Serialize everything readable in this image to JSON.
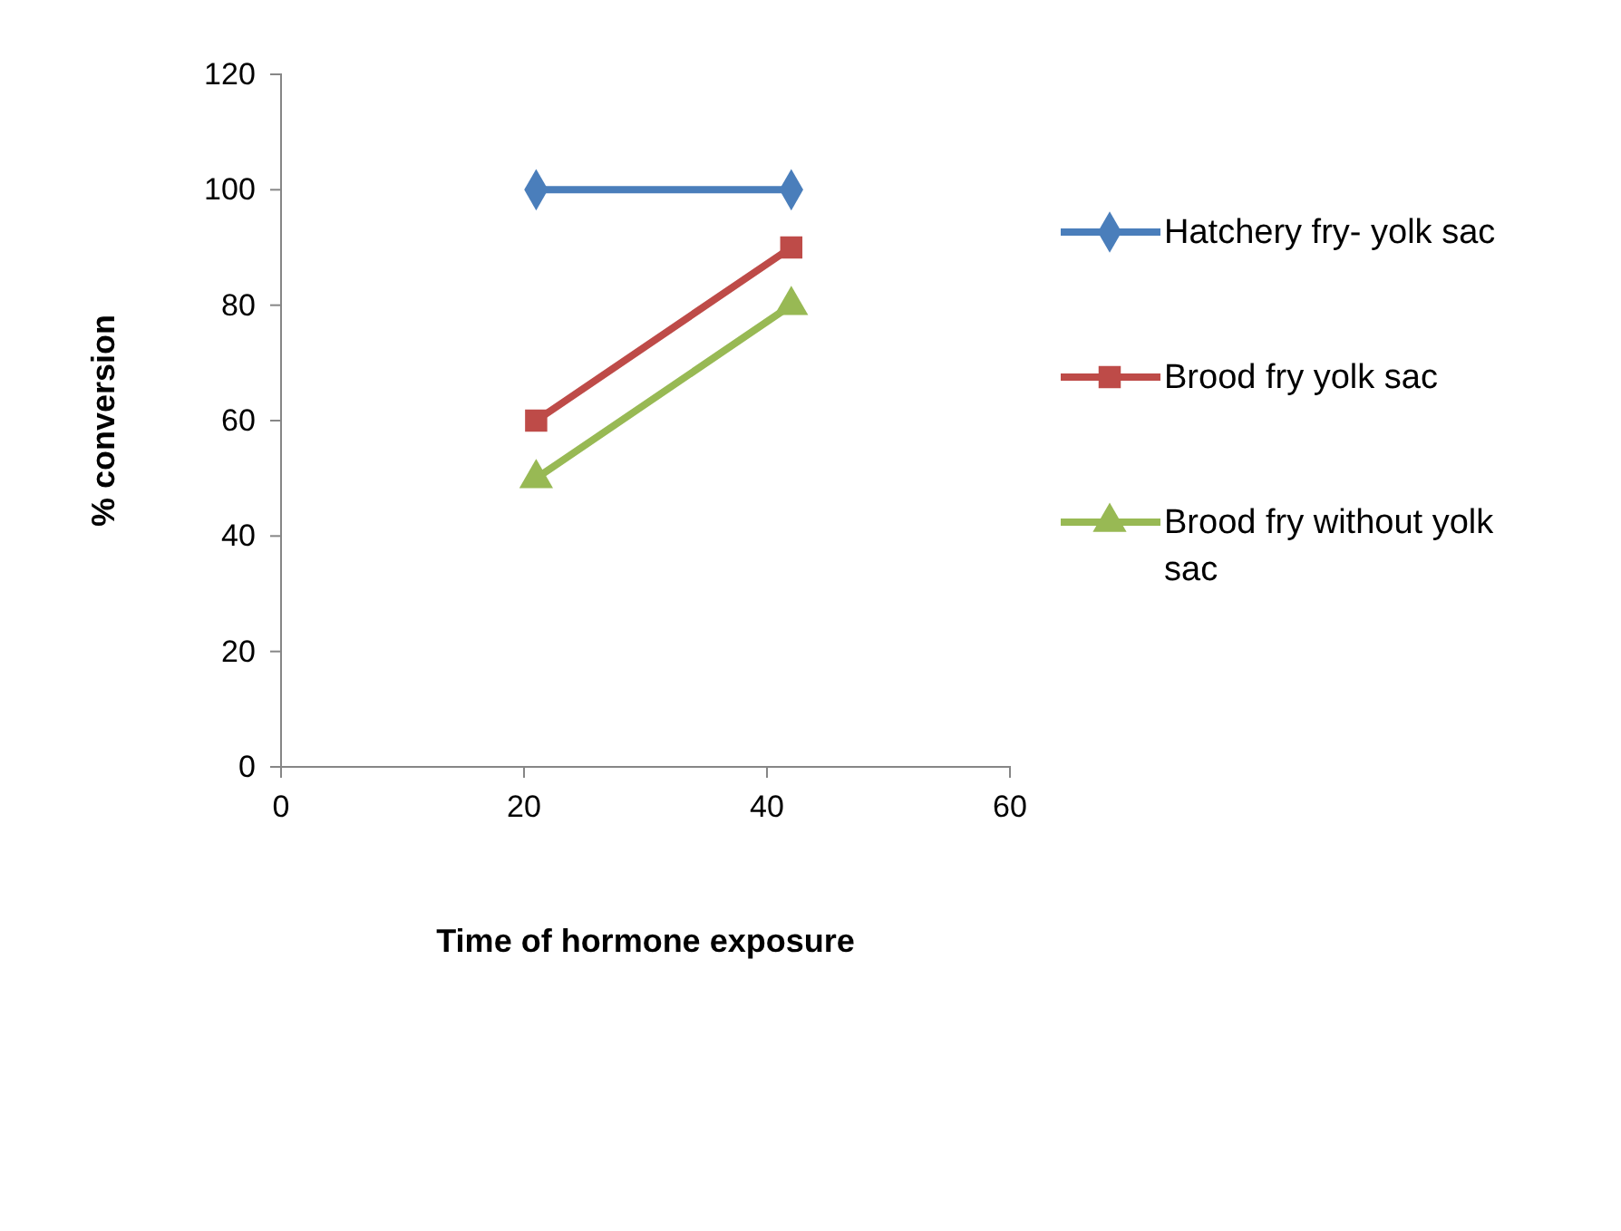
{
  "chart_data": {
    "type": "line",
    "xlabel": "Time of hormone exposure",
    "ylabel": "% conversion",
    "x": [
      21,
      42
    ],
    "series": [
      {
        "name": "Hatchery fry- yolk sac",
        "color": "#4a7ebb",
        "values": [
          100,
          100
        ],
        "marker": "diamond"
      },
      {
        "name": "Brood fry yolk sac",
        "color": "#be4b48",
        "values": [
          60,
          90
        ],
        "marker": "square"
      },
      {
        "name": "Brood fry without yolk sac",
        "color": "#98b954",
        "values": [
          50,
          80
        ],
        "marker": "triangle"
      }
    ],
    "xlim": [
      0,
      60
    ],
    "xticks": [
      0,
      20,
      40,
      60
    ],
    "ylim": [
      0,
      120
    ],
    "yticks": [
      0,
      20,
      40,
      60,
      80,
      100,
      120
    ],
    "grid": false,
    "legend": "right"
  }
}
